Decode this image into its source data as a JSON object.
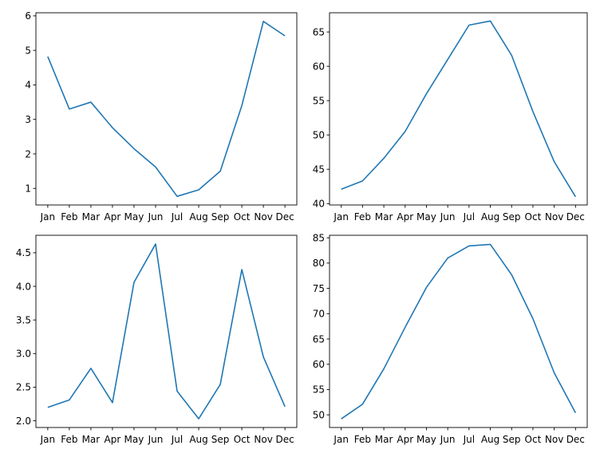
{
  "colors": {
    "line": "#1f77b4"
  },
  "chart_data": [
    {
      "type": "line",
      "title": "",
      "xlabel": "",
      "ylabel": "",
      "categories": [
        "Jan",
        "Feb",
        "Mar",
        "Apr",
        "May",
        "Jun",
        "Jul",
        "Aug",
        "Sep",
        "Oct",
        "Nov",
        "Dec"
      ],
      "values": [
        4.82,
        3.3,
        3.5,
        2.76,
        2.15,
        1.62,
        0.77,
        0.96,
        1.5,
        3.4,
        5.84,
        5.42
      ],
      "yticks": [
        1,
        2,
        3,
        4,
        5,
        6
      ],
      "ytick_labels": [
        "1",
        "2",
        "3",
        "4",
        "5",
        "6"
      ],
      "ylim": [
        0.52,
        6.09
      ],
      "grid": false
    },
    {
      "type": "line",
      "title": "",
      "xlabel": "",
      "ylabel": "",
      "categories": [
        "Jan",
        "Feb",
        "Mar",
        "Apr",
        "May",
        "Jun",
        "Jul",
        "Aug",
        "Sep",
        "Oct",
        "Nov",
        "Dec"
      ],
      "values": [
        42.1,
        43.3,
        46.6,
        50.5,
        56.0,
        61.0,
        66.0,
        66.6,
        61.6,
        53.4,
        46.1,
        41.0
      ],
      "yticks": [
        40,
        45,
        50,
        55,
        60,
        65
      ],
      "ytick_labels": [
        "40",
        "45",
        "50",
        "55",
        "60",
        "65"
      ],
      "ylim": [
        39.8,
        67.8
      ],
      "grid": false
    },
    {
      "type": "line",
      "title": "",
      "xlabel": "",
      "ylabel": "",
      "categories": [
        "Jan",
        "Feb",
        "Mar",
        "Apr",
        "May",
        "Jun",
        "Jul",
        "Aug",
        "Sep",
        "Oct",
        "Nov",
        "Dec"
      ],
      "values": [
        2.2,
        2.31,
        2.78,
        2.27,
        4.06,
        4.63,
        2.44,
        2.03,
        2.54,
        4.25,
        2.95,
        2.21
      ],
      "yticks": [
        2.0,
        2.5,
        3.0,
        3.5,
        4.0,
        4.5
      ],
      "ytick_labels": [
        "2.0",
        "2.5",
        "3.0",
        "3.5",
        "4.0",
        "4.5"
      ],
      "ylim": [
        1.9,
        4.76
      ],
      "grid": false
    },
    {
      "type": "line",
      "title": "",
      "xlabel": "",
      "ylabel": "",
      "categories": [
        "Jan",
        "Feb",
        "Mar",
        "Apr",
        "May",
        "Jun",
        "Jul",
        "Aug",
        "Sep",
        "Oct",
        "Nov",
        "Dec"
      ],
      "values": [
        49.2,
        52.1,
        59.1,
        67.3,
        75.2,
        81.0,
        83.4,
        83.7,
        77.7,
        69.0,
        58.3,
        50.4
      ],
      "yticks": [
        50,
        55,
        60,
        65,
        70,
        75,
        80,
        85
      ],
      "ytick_labels": [
        "50",
        "55",
        "60",
        "65",
        "70",
        "75",
        "80",
        "85"
      ],
      "ylim": [
        47.5,
        85.5
      ],
      "grid": false
    }
  ]
}
